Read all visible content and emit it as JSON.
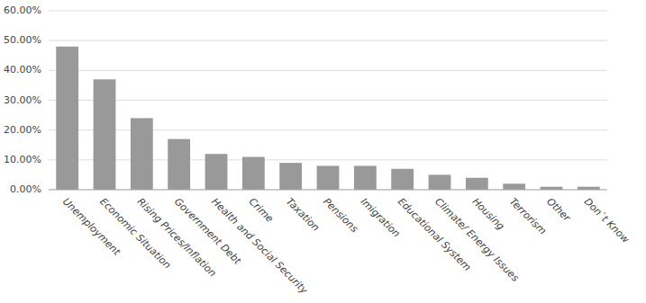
{
  "chart_data": {
    "type": "bar",
    "categories": [
      "Unemployment",
      "Economic Situation",
      "Rising Prices/Inflation",
      "Government Debt",
      "Health and Social Security",
      "Crime",
      "Taxation",
      "Pensions",
      "Imigration",
      "Educational System",
      "Climate/ Energy Issues",
      "Housing",
      "Terrorism",
      "Other",
      "Don`t Know"
    ],
    "values": [
      0.48,
      0.37,
      0.24,
      0.17,
      0.12,
      0.11,
      0.09,
      0.08,
      0.08,
      0.07,
      0.05,
      0.04,
      0.02,
      0.01,
      0.01
    ],
    "color": "#999999",
    "ylim": [
      0,
      0.6
    ],
    "yticks": [
      {
        "value": 0.0,
        "label": "0.00%"
      },
      {
        "value": 0.1,
        "label": "10.00%"
      },
      {
        "value": 0.2,
        "label": "20.00%"
      },
      {
        "value": 0.3,
        "label": "30.00%"
      },
      {
        "value": 0.4,
        "label": "40.00%"
      },
      {
        "value": 0.5,
        "label": "50.00%"
      },
      {
        "value": 0.6,
        "label": "60.00%"
      }
    ],
    "grid": true
  }
}
